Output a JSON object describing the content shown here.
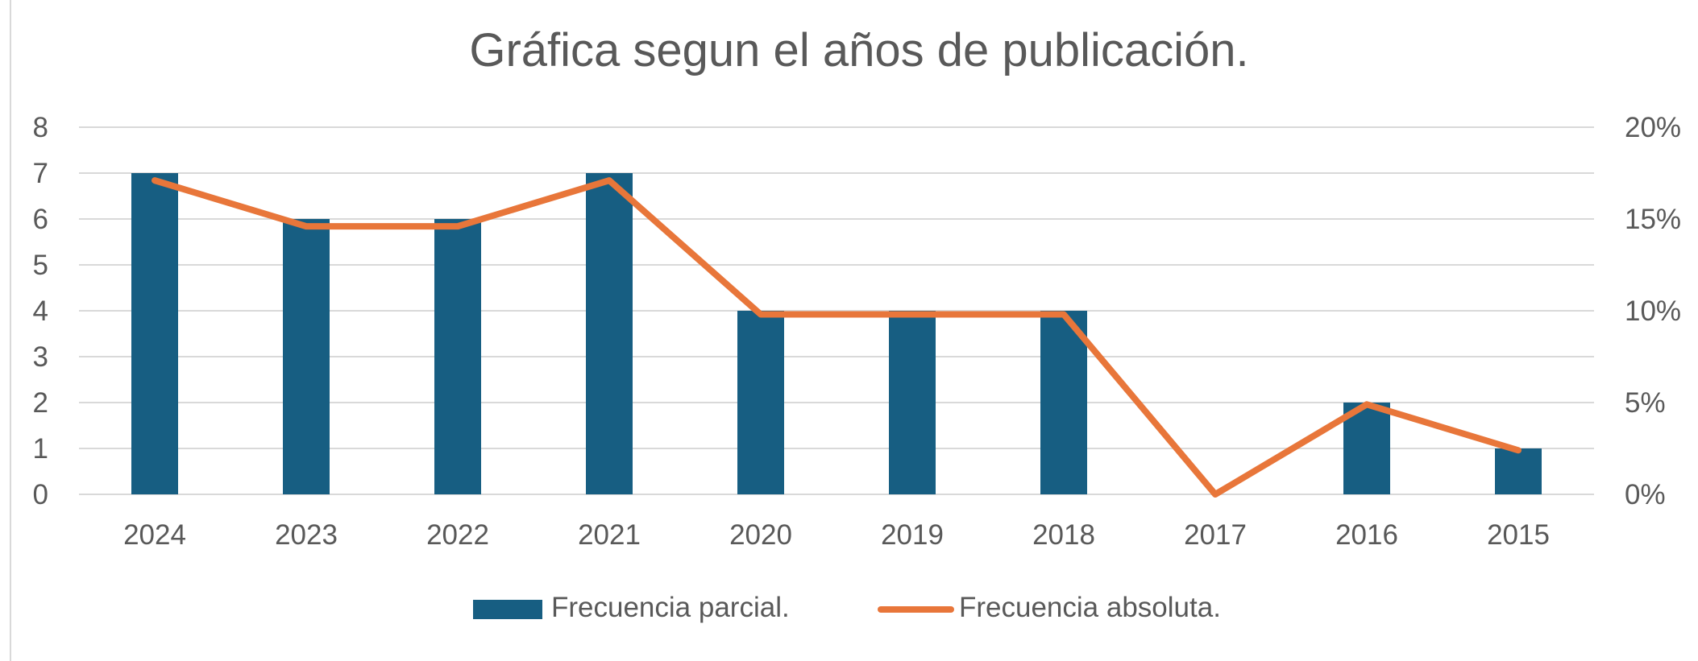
{
  "chart_data": {
    "type": "bar",
    "title": "Gráfica segun el años de publicación.",
    "categories": [
      "2024",
      "2023",
      "2022",
      "2021",
      "2020",
      "2019",
      "2018",
      "2017",
      "2016",
      "2015"
    ],
    "series": [
      {
        "name": "Frecuencia parcial.",
        "type": "bar",
        "axis": "left",
        "color": "#175e82",
        "values": [
          7,
          6,
          6,
          7,
          4,
          4,
          4,
          0,
          2,
          1
        ]
      },
      {
        "name": "Frecuencia absoluta.",
        "type": "line",
        "axis": "right",
        "color": "#e8763a",
        "values": [
          17.1,
          14.6,
          14.6,
          17.1,
          9.8,
          9.8,
          9.8,
          0,
          4.9,
          2.4
        ]
      }
    ],
    "y_left": {
      "min": 0,
      "max": 8,
      "step": 1,
      "ticks": [
        "0",
        "1",
        "2",
        "3",
        "4",
        "5",
        "6",
        "7",
        "8"
      ]
    },
    "y_right": {
      "min": 0,
      "max": 20,
      "step": 5,
      "ticks": [
        "0%",
        "5%",
        "10%",
        "15%",
        "20%"
      ]
    },
    "grid": true,
    "legend_position": "bottom"
  }
}
